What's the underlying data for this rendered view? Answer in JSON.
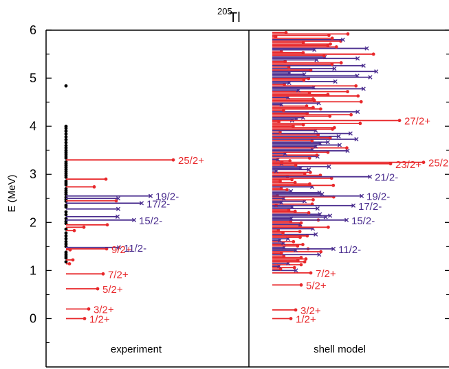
{
  "chart_data": {
    "type": "level scheme",
    "nucleus": {
      "mass": "205",
      "element": "Tl"
    },
    "ylabel": "E (MeV)",
    "ylim": [
      -0.9,
      6.1
    ],
    "yticks": [
      "0",
      "1",
      "2",
      "3",
      "4",
      "5",
      "6"
    ],
    "panels": [
      {
        "name": "experiment",
        "label": "experiment"
      },
      {
        "name": "shell-model",
        "label": "shell model"
      }
    ],
    "colors": {
      "positive_parity": "#e8282b",
      "negative_parity": "#4b2e8f",
      "extra_levels": "#000000",
      "axes": "#000000"
    },
    "experiment": {
      "levels": [
        {
          "E": 0.0,
          "len": 0.27,
          "parity": "+",
          "label": "1/2+"
        },
        {
          "E": 0.2,
          "len": 0.33,
          "parity": "+",
          "label": "3/2+"
        },
        {
          "E": 0.62,
          "len": 0.46,
          "parity": "+",
          "label": "5/2+"
        },
        {
          "E": 0.93,
          "len": 0.54,
          "parity": "+",
          "label": "7/2+"
        },
        {
          "E": 1.14,
          "len": 0.05,
          "parity": "+",
          "label": ""
        },
        {
          "E": 1.22,
          "len": 0.1,
          "parity": "+",
          "label": ""
        },
        {
          "E": 1.43,
          "len": 0.06,
          "parity": "+",
          "label": ""
        },
        {
          "E": 1.45,
          "len": 0.59,
          "parity": "+",
          "label": "9/2+"
        },
        {
          "E": 1.48,
          "len": 0.77,
          "parity": "-",
          "label": "11/2-"
        },
        {
          "E": 1.83,
          "len": 0.12,
          "parity": "+",
          "label": ""
        },
        {
          "E": 1.9,
          "len": 0.26,
          "parity": "+",
          "label": ""
        },
        {
          "E": 1.95,
          "len": 0.6,
          "parity": "+",
          "label": ""
        },
        {
          "E": 2.05,
          "len": 0.99,
          "parity": "-",
          "label": "15/2-"
        },
        {
          "E": 2.12,
          "len": 0.75,
          "parity": "-",
          "label": ""
        },
        {
          "E": 2.28,
          "len": 0.76,
          "parity": "-",
          "label": ""
        },
        {
          "E": 2.4,
          "len": 1.1,
          "parity": "-",
          "label": "17/2-"
        },
        {
          "E": 2.45,
          "len": 0.73,
          "parity": "+",
          "label": ""
        },
        {
          "E": 2.5,
          "len": 0.76,
          "parity": "-",
          "label": ""
        },
        {
          "E": 2.55,
          "len": 1.23,
          "parity": "-",
          "label": "19/2-"
        },
        {
          "E": 2.74,
          "len": 0.41,
          "parity": "+",
          "label": ""
        },
        {
          "E": 2.9,
          "len": 0.58,
          "parity": "+",
          "label": ""
        },
        {
          "E": 3.3,
          "len": 1.56,
          "parity": "+",
          "label": "25/2+"
        }
      ],
      "extra_levels_MeV": [
        1.18,
        1.26,
        1.3,
        1.34,
        1.38,
        1.5,
        1.55,
        1.6,
        1.66,
        1.72,
        1.78,
        1.86,
        1.98,
        2.02,
        2.08,
        2.16,
        2.22,
        2.32,
        2.36,
        2.44,
        2.48,
        2.52,
        2.58,
        2.62,
        2.66,
        2.7,
        2.78,
        2.82,
        2.86,
        2.94,
        2.98,
        3.02,
        3.06,
        3.1,
        3.14,
        3.18,
        3.22,
        3.26,
        3.34,
        3.38,
        3.42,
        3.46,
        3.5,
        3.55,
        3.6,
        3.66,
        3.72,
        3.78,
        3.84,
        3.9,
        3.96,
        4.0,
        4.84
      ]
    },
    "shell_model": {
      "levels": [
        {
          "E": 0.0,
          "len": 0.27,
          "parity": "+",
          "label": "1/2+"
        },
        {
          "E": 0.18,
          "len": 0.34,
          "parity": "+",
          "label": "3/2+"
        },
        {
          "E": 0.7,
          "len": 0.42,
          "parity": "+",
          "label": "5/2+"
        },
        {
          "E": 0.95,
          "len": 0.56,
          "parity": "+",
          "label": "7/2+"
        },
        {
          "E": 1.45,
          "len": 0.89,
          "parity": "-",
          "label": "11/2-"
        },
        {
          "E": 2.05,
          "len": 1.08,
          "parity": "-",
          "label": "15/2-"
        },
        {
          "E": 2.35,
          "len": 1.18,
          "parity": "-",
          "label": "17/2-"
        },
        {
          "E": 2.55,
          "len": 1.3,
          "parity": "-",
          "label": "19/2-"
        },
        {
          "E": 2.95,
          "len": 1.42,
          "parity": "-",
          "label": "21/2-"
        },
        {
          "E": 3.22,
          "len": 1.72,
          "parity": "+",
          "label": "23/2+"
        },
        {
          "E": 3.25,
          "len": 2.2,
          "parity": "+",
          "label": "25/2+"
        },
        {
          "E": 4.12,
          "len": 1.85,
          "parity": "+",
          "label": "27/2+"
        }
      ],
      "bulk_levels": {
        "E_start": 1.0,
        "E_end": 5.95,
        "step": 0.03
      }
    }
  }
}
